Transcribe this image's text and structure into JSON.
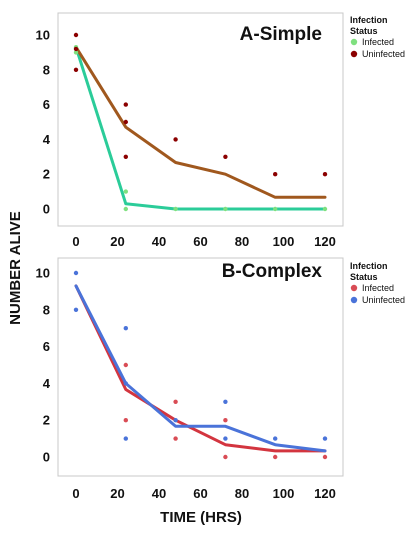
{
  "figure": {
    "ylabel": "NUMBER ALIVE",
    "xlabel": "TIME (HRS)"
  },
  "chart_data": [
    {
      "type": "line",
      "title": "A-Simple",
      "xlabel": "TIME (HRS)",
      "ylabel": "NUMBER ALIVE",
      "xlim": [
        -10,
        128
      ],
      "ylim": [
        -0.5,
        10.8
      ],
      "x_ticks": [
        0,
        20,
        40,
        60,
        80,
        100,
        120
      ],
      "y_ticks": [
        0,
        2,
        4,
        6,
        8,
        10
      ],
      "grid": false,
      "legend": {
        "position": "right",
        "title": [
          "Infection",
          "Status"
        ]
      },
      "series": [
        {
          "name": "Infected",
          "color": "#2bcc99",
          "point_color": "#7fe07f",
          "line": {
            "x": [
              0,
              24,
              48,
              72,
              96,
              120
            ],
            "y": [
              9.3,
              0.3,
              0,
              0,
              0,
              0
            ]
          },
          "points": {
            "x": [
              0,
              0,
              24,
              24,
              48,
              72,
              96,
              120
            ],
            "y": [
              9.3,
              9.0,
              1.0,
              0.0,
              0.0,
              0.0,
              0.0,
              0.0
            ]
          }
        },
        {
          "name": "Uninfected",
          "color": "#a0581e",
          "point_color": "#8b0000",
          "line": {
            "x": [
              0,
              24,
              48,
              72,
              96,
              120
            ],
            "y": [
              9.3,
              4.7,
              2.67,
              2.0,
              0.67,
              0.67
            ]
          },
          "points": {
            "x": [
              0,
              0,
              0,
              24,
              24,
              24,
              48,
              72,
              96,
              120
            ],
            "y": [
              10,
              9.2,
              8,
              6,
              5,
              3,
              4,
              3,
              2,
              2
            ]
          }
        }
      ]
    },
    {
      "type": "line",
      "title": "B-Complex",
      "xlabel": "TIME (HRS)",
      "ylabel": "NUMBER ALIVE",
      "xlim": [
        -10,
        128
      ],
      "ylim": [
        -0.9,
        11.1
      ],
      "x_ticks": [
        0,
        20,
        40,
        60,
        80,
        100,
        120
      ],
      "y_ticks": [
        0,
        2,
        4,
        6,
        8,
        10
      ],
      "grid": false,
      "legend": {
        "position": "right",
        "title": [
          "Infection",
          "Status"
        ]
      },
      "series": [
        {
          "name": "Infected",
          "color": "#d3353f",
          "point_color": "#d94c55",
          "line": {
            "x": [
              0,
              24,
              48,
              72,
              96,
              120
            ],
            "y": [
              9.3,
              3.67,
              2.0,
              0.67,
              0.33,
              0.33
            ]
          },
          "points": {
            "x": [
              24,
              24,
              48,
              48,
              72,
              72,
              96,
              120
            ],
            "y": [
              5,
              2,
              3,
              1,
              2,
              0,
              0,
              0
            ]
          }
        },
        {
          "name": "Uninfected",
          "color": "#4a73d9",
          "point_color": "#4a73d9",
          "line": {
            "x": [
              0,
              24,
              48,
              72,
              96,
              120
            ],
            "y": [
              9.3,
              4.0,
              1.67,
              1.67,
              0.67,
              0.33
            ]
          },
          "points": {
            "x": [
              0,
              0,
              24,
              24,
              24,
              48,
              72,
              72,
              96,
              120
            ],
            "y": [
              10,
              8,
              7,
              4,
              1,
              2,
              3,
              1,
              1,
              1
            ]
          }
        }
      ]
    }
  ]
}
